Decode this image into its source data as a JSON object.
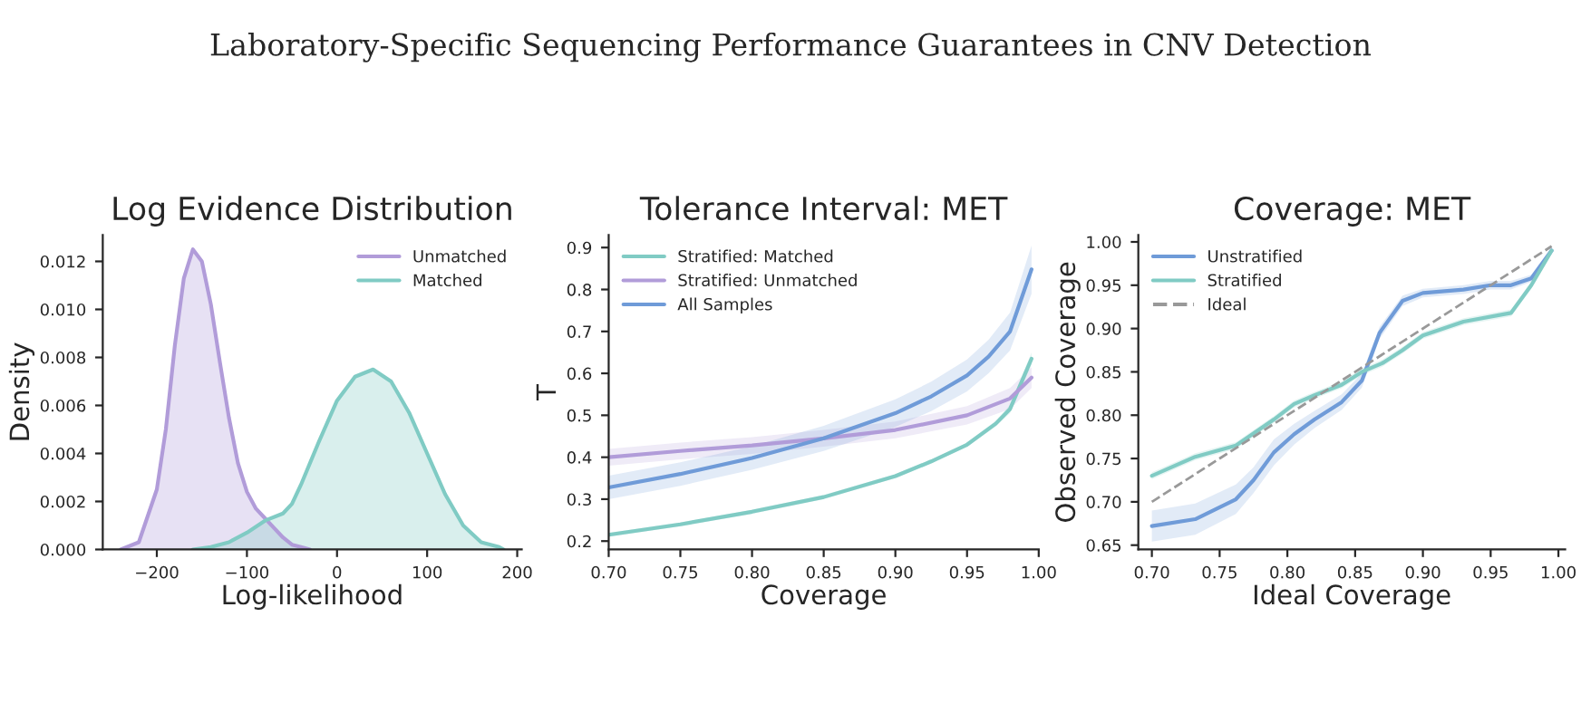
{
  "chart_data": [
    {
      "type": "area",
      "title": "Log Evidence Distribution",
      "xlabel": "Log-likelihood",
      "ylabel": "Density",
      "annotations": [
        "Laboratory-Specific Sequencing Performance Guarantees in CNV Detection"
      ],
      "xlim": [
        -260,
        205
      ],
      "xticks": [
        {
          "value": -200,
          "label": "−200"
        },
        {
          "value": -100,
          "label": "−100"
        },
        0,
        100,
        200
      ],
      "ylim": [
        0,
        0.0131
      ],
      "yticks": [
        {
          "value": 0,
          "label": "0.000"
        },
        {
          "value": 0.002,
          "label": "0.002"
        },
        {
          "value": 0.004,
          "label": "0.004"
        },
        {
          "value": 0.006,
          "label": "0.006"
        },
        {
          "value": 0.008,
          "label": "0.008"
        },
        {
          "value": 0.01,
          "label": "0.010"
        },
        {
          "value": 0.012,
          "label": "0.012"
        }
      ],
      "legend": "top right",
      "grid": false,
      "series": [
        {
          "name": "Unmatched",
          "color": "#b19cd9",
          "x": [
            -240,
            -220,
            -200,
            -190,
            -180,
            -170,
            -160,
            -150,
            -140,
            -130,
            -120,
            -110,
            -100,
            -90,
            -80,
            -70,
            -60,
            -50,
            -40,
            -30
          ],
          "values": [
            0,
            0.0003,
            0.0025,
            0.005,
            0.0085,
            0.0113,
            0.0125,
            0.012,
            0.0102,
            0.0078,
            0.0055,
            0.0036,
            0.0024,
            0.0017,
            0.0013,
            0.0009,
            0.0005,
            0.0002,
            0.0001,
            0
          ]
        },
        {
          "name": "Matched",
          "color": "#80cbc4",
          "x": [
            -160,
            -140,
            -120,
            -100,
            -80,
            -60,
            -50,
            -40,
            -20,
            0,
            20,
            40,
            60,
            80,
            100,
            120,
            140,
            160,
            180,
            185
          ],
          "values": [
            0,
            0.0001,
            0.0003,
            0.0007,
            0.0012,
            0.0015,
            0.0019,
            0.0027,
            0.0045,
            0.0062,
            0.0072,
            0.0075,
            0.007,
            0.0057,
            0.004,
            0.0023,
            0.001,
            0.0003,
            0.0001,
            0
          ]
        }
      ]
    },
    {
      "type": "line",
      "title": "Tolerance Interval: MET",
      "xlabel": "Coverage",
      "ylabel": "T",
      "xlim": [
        0.7,
        1.0
      ],
      "xticks": [
        {
          "value": 0.7,
          "label": "0.70"
        },
        {
          "value": 0.75,
          "label": "0.75"
        },
        {
          "value": 0.8,
          "label": "0.80"
        },
        {
          "value": 0.85,
          "label": "0.85"
        },
        {
          "value": 0.9,
          "label": "0.90"
        },
        {
          "value": 0.95,
          "label": "0.95"
        },
        {
          "value": 1.0,
          "label": "1.00"
        }
      ],
      "ylim": [
        0.18,
        0.93
      ],
      "yticks": [
        0.2,
        0.3,
        0.4,
        0.5,
        0.6,
        0.7,
        0.8,
        0.9
      ],
      "legend": "top left",
      "grid": false,
      "marker": "none",
      "line_style": "solid",
      "series": [
        {
          "name": "Stratified: Matched",
          "color": "#80cbc4",
          "x": [
            0.7,
            0.75,
            0.8,
            0.85,
            0.9,
            0.925,
            0.95,
            0.97,
            0.98,
            0.995
          ],
          "values": [
            0.215,
            0.24,
            0.27,
            0.305,
            0.355,
            0.39,
            0.43,
            0.48,
            0.515,
            0.635
          ],
          "lower": [
            0.21,
            0.235,
            0.265,
            0.3,
            0.35,
            0.385,
            0.425,
            0.473,
            0.505,
            0.62
          ],
          "upper": [
            0.22,
            0.245,
            0.275,
            0.31,
            0.36,
            0.395,
            0.435,
            0.487,
            0.525,
            0.65
          ]
        },
        {
          "name": "Stratified: Unmatched",
          "color": "#b19cd9",
          "x": [
            0.7,
            0.75,
            0.8,
            0.85,
            0.9,
            0.95,
            0.98,
            0.995
          ],
          "values": [
            0.4,
            0.415,
            0.428,
            0.445,
            0.465,
            0.5,
            0.54,
            0.59
          ],
          "lower": [
            0.38,
            0.395,
            0.408,
            0.425,
            0.445,
            0.478,
            0.515,
            0.565
          ],
          "upper": [
            0.42,
            0.435,
            0.448,
            0.465,
            0.485,
            0.522,
            0.565,
            0.615
          ]
        },
        {
          "name": "All Samples",
          "color": "#6f9bd8",
          "x": [
            0.7,
            0.75,
            0.8,
            0.85,
            0.9,
            0.925,
            0.95,
            0.965,
            0.98,
            0.995
          ],
          "values": [
            0.328,
            0.36,
            0.398,
            0.445,
            0.505,
            0.545,
            0.595,
            0.64,
            0.7,
            0.848
          ],
          "lower": [
            0.3,
            0.332,
            0.37,
            0.415,
            0.472,
            0.51,
            0.557,
            0.6,
            0.655,
            0.79
          ],
          "upper": [
            0.356,
            0.388,
            0.426,
            0.475,
            0.538,
            0.58,
            0.633,
            0.68,
            0.745,
            0.905
          ]
        }
      ]
    },
    {
      "type": "line",
      "title": "Coverage: MET",
      "xlabel": "Ideal Coverage",
      "ylabel": "Observed Coverage",
      "xlim": [
        0.69,
        1.005
      ],
      "xticks": [
        {
          "value": 0.7,
          "label": "0.70"
        },
        {
          "value": 0.75,
          "label": "0.75"
        },
        {
          "value": 0.8,
          "label": "0.80"
        },
        {
          "value": 0.85,
          "label": "0.85"
        },
        {
          "value": 0.9,
          "label": "0.90"
        },
        {
          "value": 0.95,
          "label": "0.95"
        },
        {
          "value": 1.0,
          "label": "1.00"
        }
      ],
      "ylim": [
        0.645,
        1.008
      ],
      "yticks": [
        {
          "value": 0.65,
          "label": "0.65"
        },
        {
          "value": 0.7,
          "label": "0.70"
        },
        {
          "value": 0.75,
          "label": "0.75"
        },
        {
          "value": 0.8,
          "label": "0.80"
        },
        {
          "value": 0.85,
          "label": "0.85"
        },
        {
          "value": 0.9,
          "label": "0.90"
        },
        {
          "value": 0.95,
          "label": "0.95"
        },
        {
          "value": 1.0,
          "label": "1.00"
        }
      ],
      "legend": "top left",
      "grid": false,
      "marker": "none",
      "line_style": "solid",
      "series": [
        {
          "name": "Unstratified",
          "color": "#6f9bd8",
          "x": [
            0.7,
            0.732,
            0.762,
            0.775,
            0.79,
            0.805,
            0.82,
            0.84,
            0.855,
            0.868,
            0.885,
            0.9,
            0.93,
            0.95,
            0.965,
            0.98,
            0.995
          ],
          "values": [
            0.672,
            0.68,
            0.703,
            0.725,
            0.757,
            0.778,
            0.795,
            0.815,
            0.84,
            0.895,
            0.932,
            0.941,
            0.945,
            0.95,
            0.95,
            0.958,
            0.99
          ],
          "lower": [
            0.654,
            0.662,
            0.686,
            0.71,
            0.742,
            0.766,
            0.785,
            0.806,
            0.832,
            0.888,
            0.926,
            0.936,
            0.94,
            0.945,
            0.945,
            0.954,
            0.986
          ],
          "upper": [
            0.69,
            0.698,
            0.72,
            0.74,
            0.772,
            0.79,
            0.805,
            0.824,
            0.848,
            0.902,
            0.938,
            0.946,
            0.95,
            0.955,
            0.955,
            0.962,
            0.994
          ]
        },
        {
          "name": "Stratified",
          "color": "#80cbc4",
          "x": [
            0.7,
            0.732,
            0.762,
            0.79,
            0.805,
            0.82,
            0.84,
            0.855,
            0.87,
            0.885,
            0.9,
            0.93,
            0.965,
            0.98,
            0.995
          ],
          "values": [
            0.73,
            0.752,
            0.765,
            0.795,
            0.813,
            0.823,
            0.835,
            0.85,
            0.86,
            0.875,
            0.892,
            0.908,
            0.918,
            0.95,
            0.99
          ],
          "lower": [
            0.726,
            0.748,
            0.761,
            0.791,
            0.809,
            0.819,
            0.831,
            0.846,
            0.856,
            0.871,
            0.888,
            0.904,
            0.914,
            0.946,
            0.986
          ],
          "upper": [
            0.734,
            0.756,
            0.769,
            0.799,
            0.817,
            0.827,
            0.839,
            0.854,
            0.864,
            0.879,
            0.896,
            0.912,
            0.922,
            0.954,
            0.994
          ]
        },
        {
          "name": "Ideal",
          "color": "#999999",
          "line_style": "dashed",
          "x": [
            0.7,
            0.995
          ],
          "values": [
            0.7,
            0.995
          ]
        }
      ]
    }
  ]
}
